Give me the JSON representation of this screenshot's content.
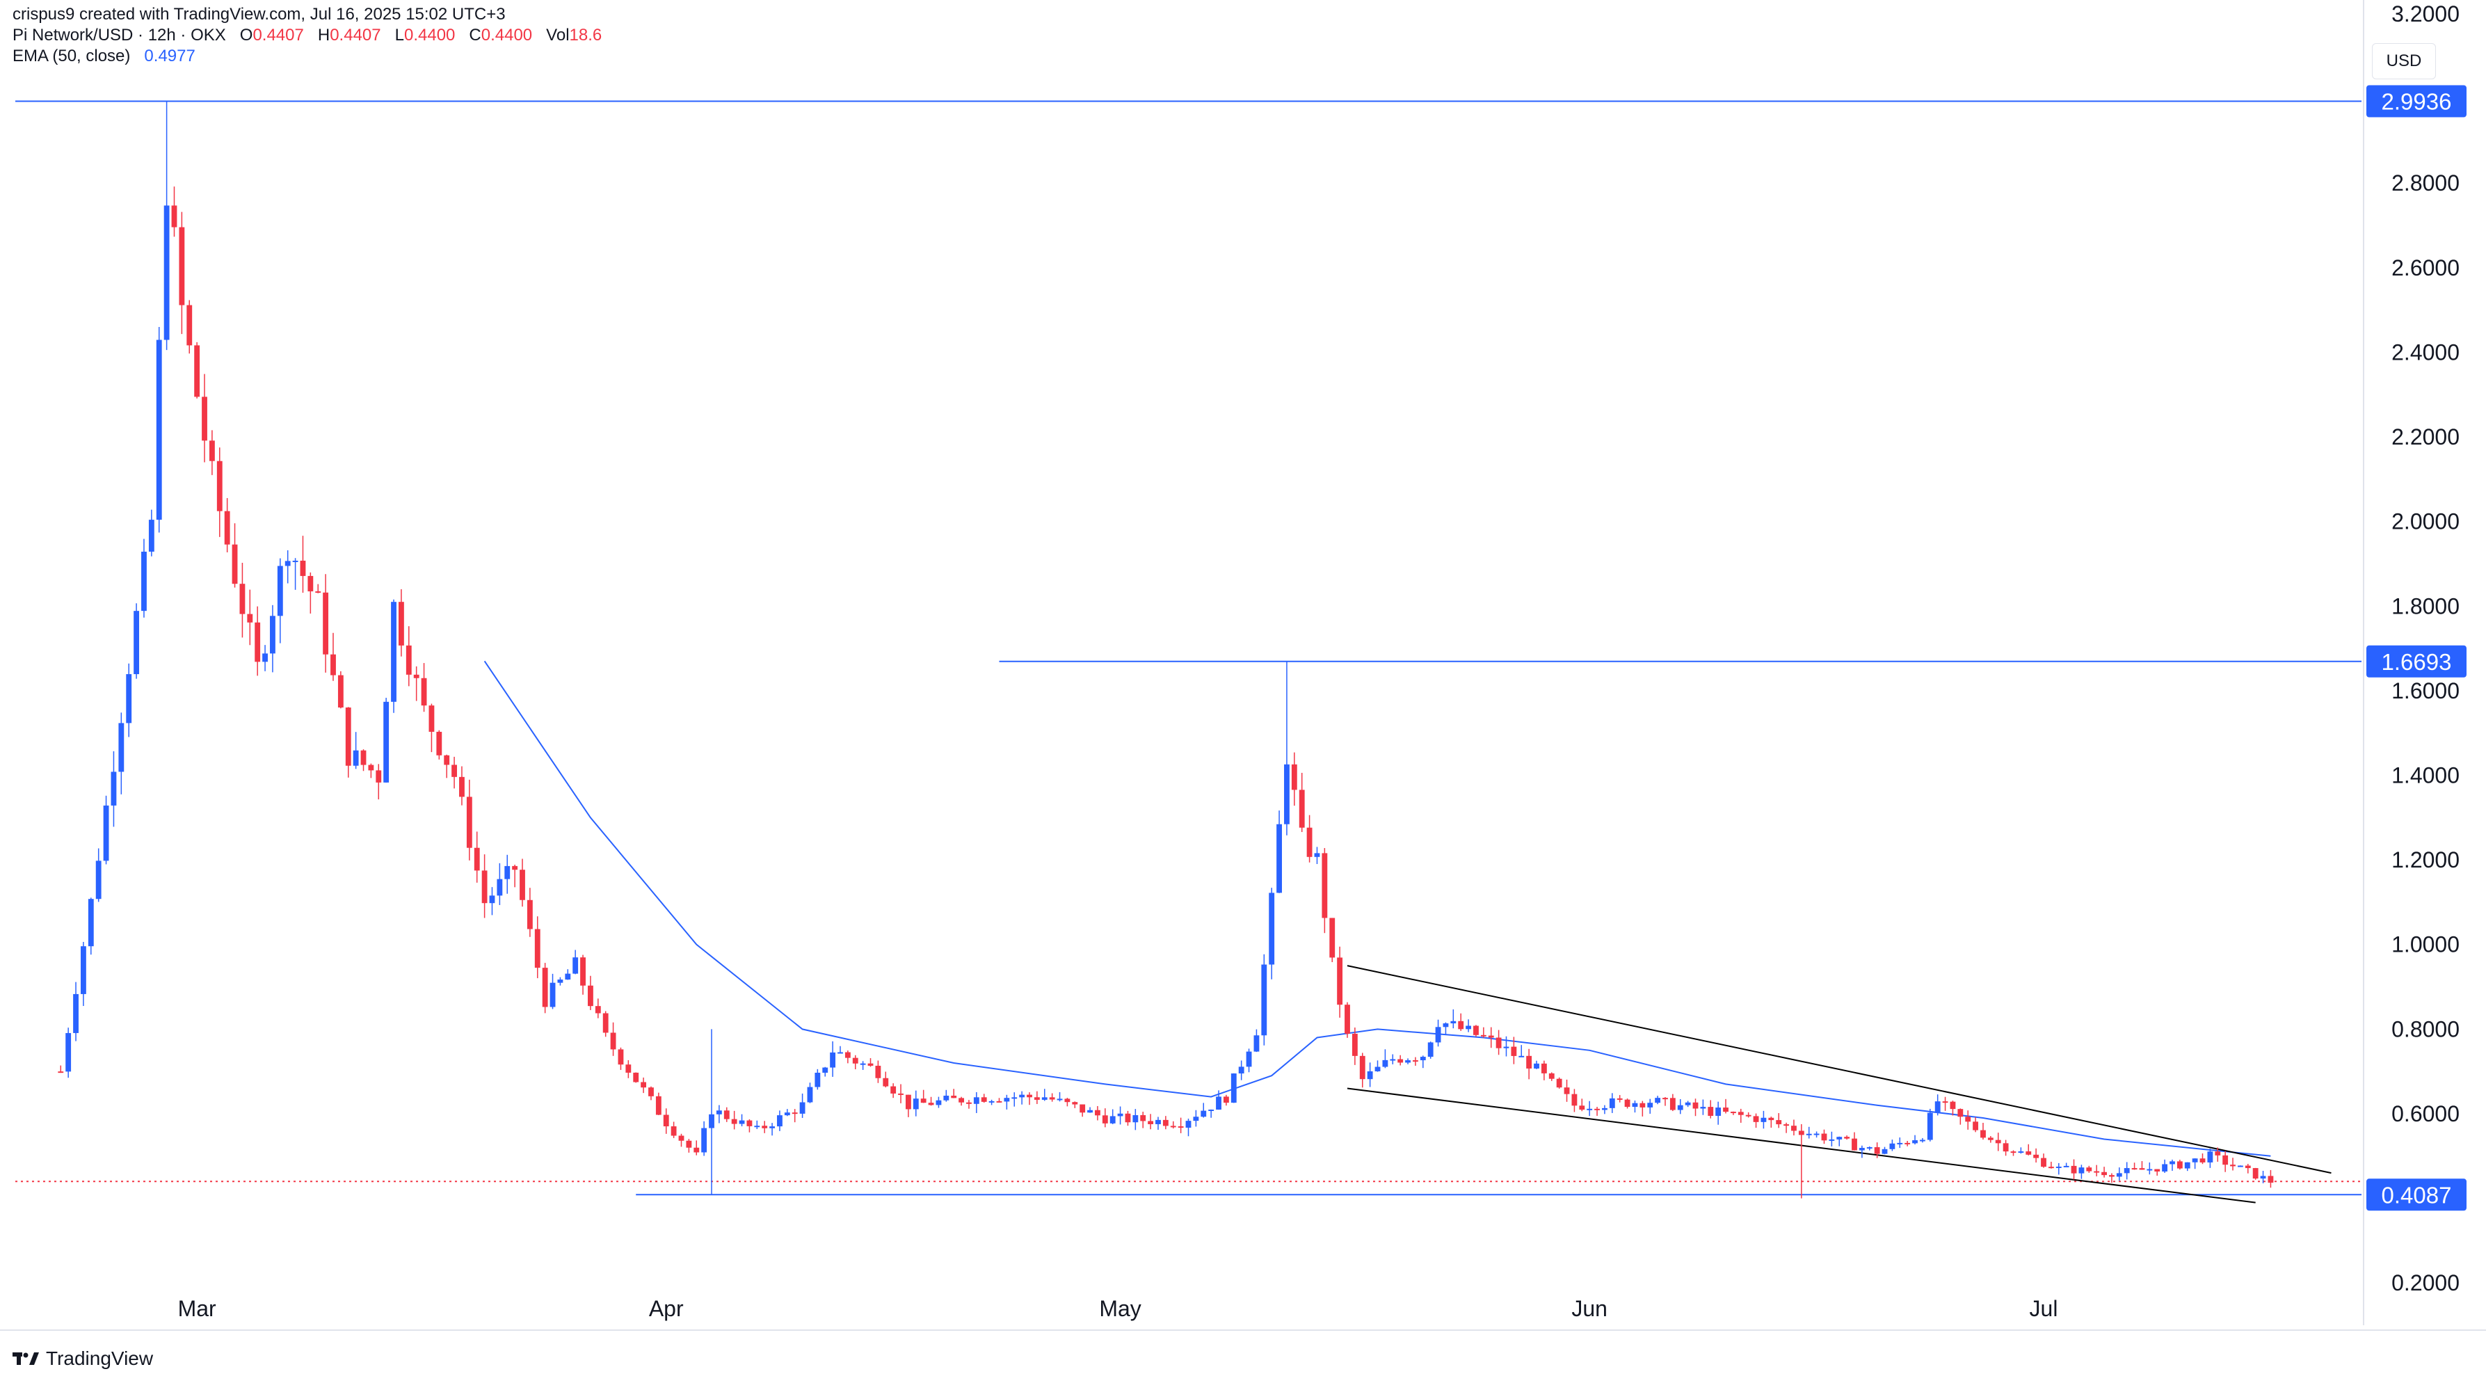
{
  "header": {
    "attribution": "crispus9 created with TradingView.com, Jul 16, 2025 15:02 UTC+3",
    "symbol": "Pi Network/USD · 12h · OKX",
    "o_label": "O",
    "o_value": "0.4407",
    "h_label": "H",
    "h_value": "0.4407",
    "l_label": "L",
    "l_value": "0.4400",
    "c_label": "C",
    "c_value": "0.4400",
    "vol_label": "Vol",
    "vol_value": "18.6",
    "ema_label": "EMA (50, close)",
    "ema_value": "0.4977"
  },
  "currency_button": "USD",
  "footer": {
    "brand": "TradingView"
  },
  "colors": {
    "up": "#2962ff",
    "down": "#f23645",
    "ema": "#2962ff",
    "hline": "#2962ff",
    "trendline": "#000000",
    "price_line": "#f23645",
    "label_bg": "#2962ff"
  },
  "chart_data": {
    "type": "candlestick",
    "ylim": [
      0.1,
      3.2
    ],
    "xlim": [
      "2025-02-17",
      "2025-07-22"
    ],
    "y_ticks": [
      "0.2000",
      "0.4000",
      "0.6000",
      "0.8000",
      "1.0000",
      "1.2000",
      "1.4000",
      "1.6000",
      "1.8000",
      "2.0000",
      "2.2000",
      "2.4000",
      "2.6000",
      "2.8000",
      "3.0000",
      "3.2000"
    ],
    "x_ticks": [
      {
        "label": "Mar",
        "date": "2025-03-01"
      },
      {
        "label": "Apr",
        "date": "2025-04-01"
      },
      {
        "label": "May",
        "date": "2025-05-01"
      },
      {
        "label": "Jun",
        "date": "2025-06-01"
      },
      {
        "label": "Jul",
        "date": "2025-07-01"
      }
    ],
    "price_labels": [
      {
        "value": 2.9936,
        "text": "2.9936"
      },
      {
        "value": 1.6693,
        "text": "1.6693"
      },
      {
        "value": 0.4087,
        "text": "0.4087"
      }
    ],
    "horizontal_lines": [
      {
        "value": 2.9936,
        "from": "2025-02-17",
        "to": "2025-07-22"
      },
      {
        "value": 1.6693,
        "from": "2025-04-23",
        "to": "2025-07-22"
      },
      {
        "value": 0.4087,
        "from": "2025-03-30",
        "to": "2025-07-22"
      }
    ],
    "last_price": 0.44,
    "trendlines": [
      {
        "x1": "2025-05-16",
        "y1": 0.95,
        "x2": "2025-07-20",
        "y2": 0.46
      },
      {
        "x1": "2025-05-16",
        "y1": 0.66,
        "x2": "2025-07-15",
        "y2": 0.39
      }
    ],
    "anchors": [
      {
        "date": "2025-02-20",
        "close": 0.7
      },
      {
        "date": "2025-02-22",
        "close": 1.1
      },
      {
        "date": "2025-02-24",
        "close": 1.55
      },
      {
        "date": "2025-02-26",
        "close": 2.0
      },
      {
        "date": "2025-02-27",
        "close": 2.8
      },
      {
        "date": "2025-02-28",
        "close": 2.5
      },
      {
        "date": "2025-03-02",
        "close": 2.1
      },
      {
        "date": "2025-03-04",
        "close": 1.8
      },
      {
        "date": "2025-03-05",
        "close": 1.65
      },
      {
        "date": "2025-03-07",
        "close": 1.95
      },
      {
        "date": "2025-03-09",
        "close": 1.8
      },
      {
        "date": "2025-03-11",
        "close": 1.45
      },
      {
        "date": "2025-03-13",
        "close": 1.4
      },
      {
        "date": "2025-03-14",
        "close": 1.8
      },
      {
        "date": "2025-03-16",
        "close": 1.55
      },
      {
        "date": "2025-03-18",
        "close": 1.4
      },
      {
        "date": "2025-03-20",
        "close": 1.1
      },
      {
        "date": "2025-03-22",
        "close": 1.18
      },
      {
        "date": "2025-03-24",
        "close": 0.87
      },
      {
        "date": "2025-03-26",
        "close": 0.95
      },
      {
        "date": "2025-03-28",
        "close": 0.78
      },
      {
        "date": "2025-03-30",
        "close": 0.68
      },
      {
        "date": "2025-04-01",
        "close": 0.58
      },
      {
        "date": "2025-04-03",
        "close": 0.5
      },
      {
        "date": "2025-04-04",
        "close": 0.61
      },
      {
        "date": "2025-04-07",
        "close": 0.56
      },
      {
        "date": "2025-04-10",
        "close": 0.62
      },
      {
        "date": "2025-04-12",
        "close": 0.75
      },
      {
        "date": "2025-04-15",
        "close": 0.7
      },
      {
        "date": "2025-04-17",
        "close": 0.62
      },
      {
        "date": "2025-04-22",
        "close": 0.64
      },
      {
        "date": "2025-04-26",
        "close": 0.64
      },
      {
        "date": "2025-04-30",
        "close": 0.59
      },
      {
        "date": "2025-05-05",
        "close": 0.58
      },
      {
        "date": "2025-05-08",
        "close": 0.64
      },
      {
        "date": "2025-05-10",
        "close": 0.8
      },
      {
        "date": "2025-05-11",
        "close": 1.1
      },
      {
        "date": "2025-05-12",
        "close": 1.45
      },
      {
        "date": "2025-05-13",
        "close": 1.25
      },
      {
        "date": "2025-05-14",
        "close": 1.2
      },
      {
        "date": "2025-05-15",
        "close": 0.95
      },
      {
        "date": "2025-05-16",
        "close": 0.78
      },
      {
        "date": "2025-05-17",
        "close": 0.68
      },
      {
        "date": "2025-05-19",
        "close": 0.73
      },
      {
        "date": "2025-05-21",
        "close": 0.74
      },
      {
        "date": "2025-05-22",
        "close": 0.82
      },
      {
        "date": "2025-05-25",
        "close": 0.78
      },
      {
        "date": "2025-05-28",
        "close": 0.72
      },
      {
        "date": "2025-05-31",
        "close": 0.62
      },
      {
        "date": "2025-06-05",
        "close": 0.63
      },
      {
        "date": "2025-06-10",
        "close": 0.6
      },
      {
        "date": "2025-06-12",
        "close": 0.59
      },
      {
        "date": "2025-06-15",
        "close": 0.56
      },
      {
        "date": "2025-06-20",
        "close": 0.51
      },
      {
        "date": "2025-06-23",
        "close": 0.55
      },
      {
        "date": "2025-06-24",
        "close": 0.63
      },
      {
        "date": "2025-06-25",
        "close": 0.6
      },
      {
        "date": "2025-06-28",
        "close": 0.53
      },
      {
        "date": "2025-07-02",
        "close": 0.47
      },
      {
        "date": "2025-07-06",
        "close": 0.46
      },
      {
        "date": "2025-07-10",
        "close": 0.48
      },
      {
        "date": "2025-07-12",
        "close": 0.5
      },
      {
        "date": "2025-07-14",
        "close": 0.47
      },
      {
        "date": "2025-07-16",
        "close": 0.44
      }
    ],
    "ema": [
      {
        "date": "2025-03-20",
        "value": 1.67
      },
      {
        "date": "2025-03-27",
        "value": 1.3
      },
      {
        "date": "2025-04-03",
        "value": 1.0
      },
      {
        "date": "2025-04-10",
        "value": 0.8
      },
      {
        "date": "2025-04-20",
        "value": 0.72
      },
      {
        "date": "2025-04-30",
        "value": 0.67
      },
      {
        "date": "2025-05-07",
        "value": 0.64
      },
      {
        "date": "2025-05-11",
        "value": 0.69
      },
      {
        "date": "2025-05-14",
        "value": 0.78
      },
      {
        "date": "2025-05-18",
        "value": 0.8
      },
      {
        "date": "2025-05-25",
        "value": 0.78
      },
      {
        "date": "2025-06-01",
        "value": 0.75
      },
      {
        "date": "2025-06-10",
        "value": 0.67
      },
      {
        "date": "2025-06-20",
        "value": 0.62
      },
      {
        "date": "2025-06-27",
        "value": 0.59
      },
      {
        "date": "2025-07-05",
        "value": 0.54
      },
      {
        "date": "2025-07-16",
        "value": 0.5
      }
    ]
  }
}
